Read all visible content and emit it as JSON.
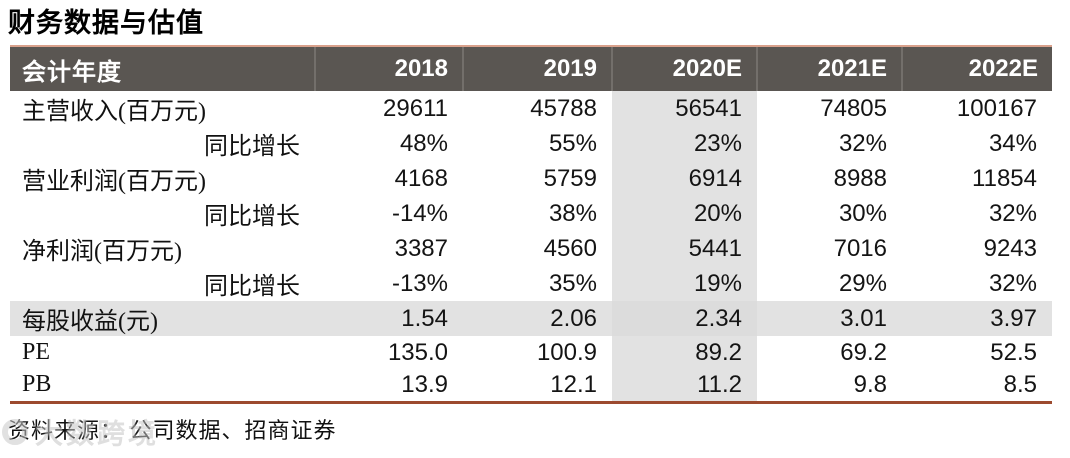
{
  "title": "财务数据与估值",
  "table": {
    "header": [
      "会计年度",
      "2018",
      "2019",
      "2020E",
      "2021E",
      "2022E"
    ],
    "highlight_column": "2020E",
    "highlight_col_index": 2,
    "rows": [
      {
        "label": "主营收入(百万元)",
        "indent": false,
        "highlight": false,
        "values": [
          "29611",
          "45788",
          "56541",
          "74805",
          "100167"
        ]
      },
      {
        "label": "同比增长",
        "indent": true,
        "highlight": false,
        "values": [
          "48%",
          "55%",
          "23%",
          "32%",
          "34%"
        ]
      },
      {
        "label": "营业利润(百万元)",
        "indent": false,
        "highlight": false,
        "values": [
          "4168",
          "5759",
          "6914",
          "8988",
          "11854"
        ]
      },
      {
        "label": "同比增长",
        "indent": true,
        "highlight": false,
        "values": [
          "-14%",
          "38%",
          "20%",
          "30%",
          "32%"
        ]
      },
      {
        "label": "净利润(百万元)",
        "indent": false,
        "highlight": false,
        "values": [
          "3387",
          "4560",
          "5441",
          "7016",
          "9243"
        ]
      },
      {
        "label": "同比增长",
        "indent": true,
        "highlight": false,
        "values": [
          "-13%",
          "35%",
          "19%",
          "29%",
          "32%"
        ]
      },
      {
        "label": "每股收益(元)",
        "indent": false,
        "highlight": true,
        "values": [
          "1.54",
          "2.06",
          "2.34",
          "3.01",
          "3.97"
        ]
      },
      {
        "label": "PE",
        "indent": false,
        "highlight": false,
        "values": [
          "135.0",
          "100.9",
          "89.2",
          "69.2",
          "52.5"
        ]
      },
      {
        "label": "PB",
        "indent": false,
        "highlight": false,
        "values": [
          "13.9",
          "12.1",
          "11.2",
          "9.8",
          "8.5"
        ]
      }
    ]
  },
  "footer": {
    "source": "资料来源： 公司数据、招商证券"
  },
  "watermark": {
    "text": "大数跨境"
  },
  "colors": {
    "header_bg": "#5a5652",
    "header_text": "#ffffff",
    "header_top_border": "#d9a18c",
    "highlight_cell_bg": "#e2e2e2",
    "bottom_rule": "#9c4a2f"
  }
}
